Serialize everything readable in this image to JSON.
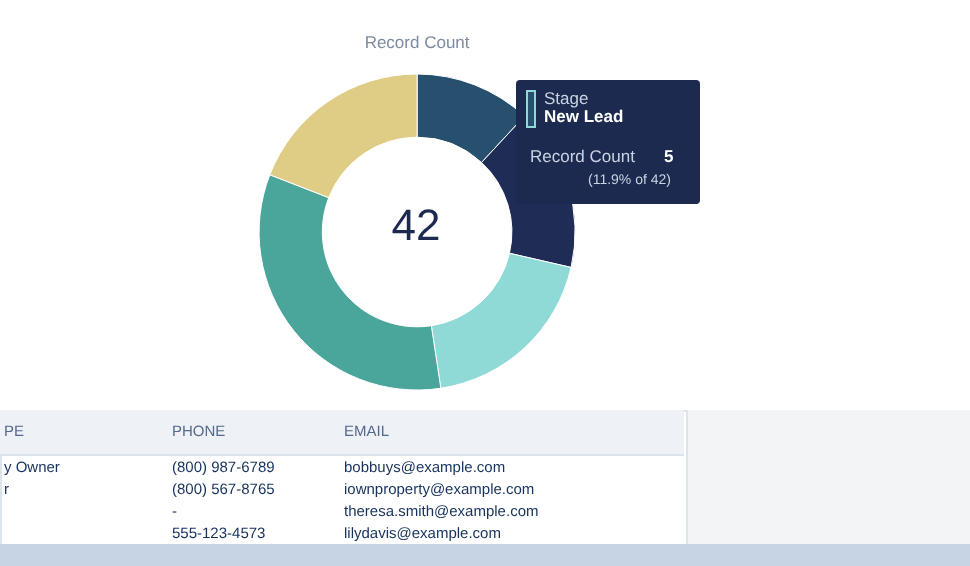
{
  "chart_data": {
    "type": "donut",
    "title": "Record Count",
    "legend_title": "Stage",
    "categories": [
      "New Lead",
      null,
      null,
      null,
      null
    ],
    "values": [
      11.9,
      16.7,
      19.0,
      33.3,
      19.1
    ],
    "colors": [
      "#27506e",
      "#1f2d56",
      "#8fdad6",
      "#4aa59b",
      "#e0cd85"
    ],
    "annotations": [
      "42",
      "Record Count",
      "5",
      "(11.9% of 42)",
      "PE",
      "PHONE",
      "EMAIL",
      "y Owner",
      "(800) 987-6789",
      "bobbuys@example.com",
      "r",
      "(800) 567-8765",
      "iownproperty@example.com",
      "-",
      "theresa.smith@example.com",
      "555-123-4573",
      "lilydavis@example.com"
    ]
  }
}
